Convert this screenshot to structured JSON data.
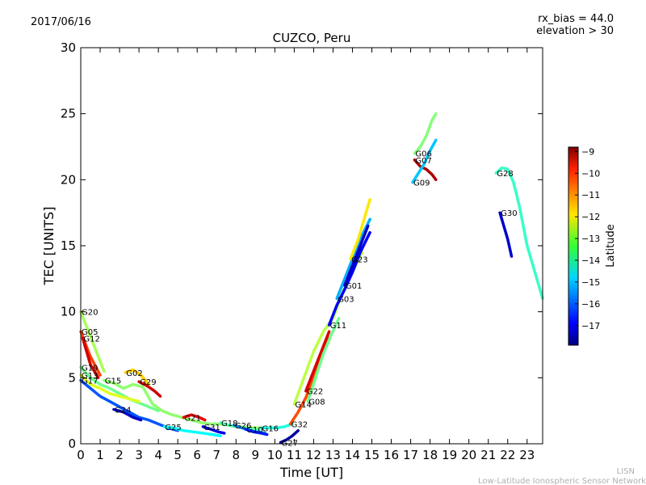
{
  "header": {
    "date": "2017/06/16",
    "rx_bias": "rx_bias = 44.0",
    "elevation": "elevation > 30"
  },
  "footer": {
    "short": "LISN",
    "long": "Low-Latitude Ionospheric Sensor Network"
  },
  "colorbar": {
    "label": "Latitude",
    "ticks": [
      "−9",
      "−10",
      "−11",
      "−12",
      "−13",
      "−14",
      "−15",
      "−16",
      "−17"
    ],
    "tick_values": [
      -9,
      -10,
      -11,
      -12,
      -13,
      -14,
      -15,
      -16,
      -17
    ],
    "range": [
      -17.9,
      -8.8
    ]
  },
  "chart_data": {
    "type": "scatter",
    "title": "CUZCO, Peru",
    "xlabel": "Time [UT]",
    "ylabel": "TEC [UNITS]",
    "xlim": [
      0,
      23.8
    ],
    "ylim": [
      0,
      30
    ],
    "xticks": [
      0,
      1,
      2,
      3,
      4,
      5,
      6,
      7,
      8,
      9,
      10,
      11,
      12,
      13,
      14,
      15,
      16,
      17,
      18,
      19,
      20,
      21,
      22,
      23
    ],
    "yticks": [
      0,
      5,
      10,
      15,
      20,
      25,
      30
    ],
    "grid": false,
    "series": [
      {
        "name": "G20",
        "lat": -13.0,
        "x": [
          0,
          0.4,
          0.8,
          1.2
        ],
        "y": [
          10,
          8.5,
          7,
          5.5
        ]
      },
      {
        "name": "G05",
        "lat": -10.5,
        "x": [
          0,
          0.5,
          1.0
        ],
        "y": [
          8.5,
          6.6,
          5.2
        ]
      },
      {
        "name": "G12",
        "lat": -9.5,
        "x": [
          0.1,
          0.5,
          0.9
        ],
        "y": [
          8,
          6,
          5
        ]
      },
      {
        "name": "G19",
        "lat": -13.5,
        "x": [
          0,
          0.5,
          1,
          1.5,
          2,
          2.5,
          3,
          3.5,
          4
        ],
        "y": [
          5.8,
          5,
          4.5,
          4.2,
          3.8,
          3.4,
          3.1,
          2.8,
          2.5
        ]
      },
      {
        "name": "G13",
        "lat": -12.5,
        "x": [
          0,
          0.5,
          1,
          1.5,
          2,
          2.5,
          3
        ],
        "y": [
          5.2,
          4.5,
          4.2,
          3.8,
          3.6,
          3.4,
          3.2
        ]
      },
      {
        "name": "G17",
        "lat": -16.0,
        "x": [
          0,
          0.5,
          1,
          1.5,
          2,
          2.5,
          3,
          3.5,
          4,
          4.5,
          5
        ],
        "y": [
          4.8,
          4.2,
          3.6,
          3.2,
          2.8,
          2.4,
          2,
          1.8,
          1.5,
          1.2,
          1.0
        ]
      },
      {
        "name": "G15",
        "lat": -13.2,
        "x": [
          1.2,
          1.7,
          2.2,
          2.7,
          3.2,
          3.7,
          4.2,
          4.7,
          5.2,
          5.7,
          6.2,
          6.7,
          7.2,
          7.7,
          8.2,
          8.7,
          9.2
        ],
        "y": [
          4.8,
          4.6,
          4.2,
          4.5,
          4.3,
          3,
          2.5,
          2.2,
          2,
          1.8,
          1.6,
          1.5,
          1.5,
          1.4,
          1.3,
          1.2,
          1.2
        ]
      },
      {
        "name": "G02",
        "lat": -11.8,
        "x": [
          2.3,
          2.7,
          3.1,
          3.5
        ],
        "y": [
          5.4,
          5.6,
          5.2,
          4.5
        ]
      },
      {
        "name": "G29",
        "lat": -9.5,
        "x": [
          3,
          3.4,
          3.8,
          4.1
        ],
        "y": [
          4.7,
          4.4,
          4.0,
          3.6
        ]
      },
      {
        "name": "G24",
        "lat": -17.3,
        "x": [
          1.7,
          2.2,
          2.7,
          3.1
        ],
        "y": [
          2.6,
          2.4,
          2.0,
          1.8
        ]
      },
      {
        "name": "G25",
        "lat": -14.5,
        "x": [
          4.3,
          4.8,
          5.3,
          5.8,
          6.3,
          6.8,
          7.2
        ],
        "y": [
          1.3,
          1.2,
          1.0,
          0.9,
          0.8,
          0.7,
          0.6
        ]
      },
      {
        "name": "G21",
        "lat": -9.8,
        "x": [
          5.3,
          5.7,
          6.1,
          6.4
        ],
        "y": [
          2.0,
          2.2,
          2.0,
          1.8
        ]
      },
      {
        "name": "G31",
        "lat": -17.0,
        "x": [
          6.3,
          6.7,
          7.1,
          7.4
        ],
        "y": [
          1.3,
          1.1,
          0.9,
          0.8
        ]
      },
      {
        "name": "G18",
        "lat": -13.8,
        "x": [
          7.2,
          7.6,
          8.0,
          8.4,
          8.8,
          9.2
        ],
        "y": [
          1.6,
          1.4,
          1.3,
          1.2,
          1.1,
          1.0
        ]
      },
      {
        "name": "G26",
        "lat": -15.5,
        "x": [
          7.9,
          8.3,
          8.7,
          9.1,
          9.5
        ],
        "y": [
          1.4,
          1.2,
          1.0,
          0.9,
          0.8
        ]
      },
      {
        "name": "G10",
        "lat": -16.5,
        "x": [
          8.5,
          8.9,
          9.3,
          9.6
        ],
        "y": [
          1.1,
          0.9,
          0.8,
          0.7
        ]
      },
      {
        "name": "G16",
        "lat": -14.2,
        "x": [
          9.3,
          9.7,
          10.1,
          10.5,
          10.9
        ],
        "y": [
          1.2,
          1.2,
          1.2,
          1.3,
          1.5
        ]
      },
      {
        "name": "G27",
        "lat": -17.6,
        "x": [
          10.3,
          10.6,
          10.9,
          11.2
        ],
        "y": [
          0.1,
          0.3,
          0.6,
          1.0
        ]
      },
      {
        "name": "G32",
        "lat": -10.6,
        "x": [
          10.8,
          11.2,
          11.6,
          12.0,
          12.4,
          12.8
        ],
        "y": [
          1.5,
          2.4,
          3.5,
          5,
          6.5,
          8
        ]
      },
      {
        "name": "G14",
        "lat": -12.8,
        "x": [
          11.0,
          11.5,
          12.0,
          12.5,
          13.0,
          13.5,
          14.0,
          14.5
        ],
        "y": [
          3,
          5,
          7,
          8.5,
          9.5,
          11.5,
          13,
          14.5
        ]
      },
      {
        "name": "G22",
        "lat": -9.6,
        "x": [
          11.6,
          12.0,
          12.4,
          12.8
        ],
        "y": [
          4,
          5.5,
          7,
          8.5
        ]
      },
      {
        "name": "G08",
        "lat": -13.5,
        "x": [
          11.7,
          12.1,
          12.5,
          12.9,
          13.3
        ],
        "y": [
          3.2,
          5,
          6.8,
          8.2,
          9.5
        ]
      },
      {
        "name": "G11",
        "lat": -16.8,
        "x": [
          12.8,
          13.2,
          13.6,
          14.0,
          14.4,
          14.9
        ],
        "y": [
          9,
          10.5,
          11.7,
          13,
          14.5,
          16
        ]
      },
      {
        "name": "G03",
        "lat": -15.2,
        "x": [
          13.2,
          13.6,
          14.0,
          14.4,
          14.9
        ],
        "y": [
          11,
          12.5,
          14,
          15.5,
          17
        ]
      },
      {
        "name": "G01",
        "lat": -17.3,
        "x": [
          13.6,
          14.0,
          14.4,
          14.8
        ],
        "y": [
          12,
          13.5,
          15,
          16.5
        ]
      },
      {
        "name": "G23",
        "lat": -12.0,
        "x": [
          13.9,
          14.3,
          14.6,
          14.9
        ],
        "y": [
          14,
          15.5,
          17,
          18.5
        ]
      },
      {
        "name": "G06",
        "lat": -13.3,
        "x": [
          17.2,
          17.5,
          17.8,
          18.1,
          18.3
        ],
        "y": [
          22,
          22.5,
          23.3,
          24.5,
          25
        ]
      },
      {
        "name": "G07",
        "lat": -9.2,
        "x": [
          17.2,
          17.5,
          17.8,
          18.1,
          18.3
        ],
        "y": [
          21.5,
          21.0,
          20.8,
          20.4,
          20.0
        ]
      },
      {
        "name": "G09",
        "lat": -15.0,
        "x": [
          17.1,
          17.4,
          17.7,
          18.0,
          18.3
        ],
        "y": [
          19.8,
          20.5,
          21.2,
          22.2,
          23
        ]
      },
      {
        "name": "G28",
        "lat": -14.0,
        "x": [
          21.4,
          21.7,
          22.0,
          22.3,
          22.6,
          23.0,
          23.4,
          23.8
        ],
        "y": [
          20.5,
          20.9,
          20.8,
          19.8,
          18,
          15,
          13,
          11
        ]
      },
      {
        "name": "G30",
        "lat": -17.2,
        "x": [
          21.6,
          21.8,
          22.0,
          22.2
        ],
        "y": [
          17.5,
          16.5,
          15.5,
          14.2
        ]
      }
    ]
  }
}
